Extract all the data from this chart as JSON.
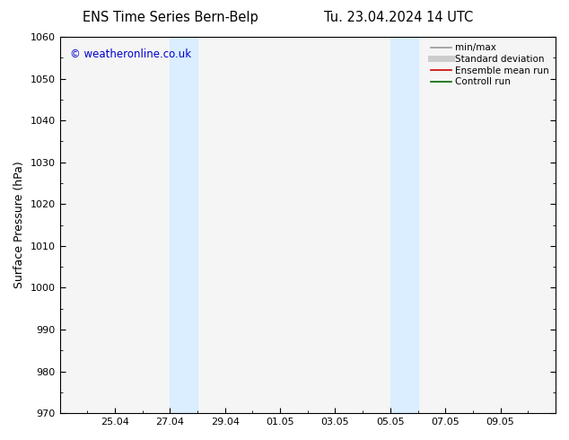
{
  "title_left": "ENS Time Series Bern-Belp",
  "title_right": "Tu. 23.04.2024 14 UTC",
  "ylabel": "Surface Pressure (hPa)",
  "ylim": [
    970,
    1060
  ],
  "yticks": [
    970,
    980,
    990,
    1000,
    1010,
    1020,
    1030,
    1040,
    1050,
    1060
  ],
  "xlabel_ticks": [
    "25.04",
    "27.04",
    "29.04",
    "01.05",
    "03.05",
    "05.05",
    "07.05",
    "09.05"
  ],
  "x_tick_positions": [
    2,
    4,
    6,
    8,
    10,
    12,
    14,
    16
  ],
  "shade_bands": [
    {
      "x_start": 4.0,
      "x_end": 5.0
    },
    {
      "x_start": 12.0,
      "x_end": 13.0
    }
  ],
  "shade_color": "#daeeff",
  "watermark_text": "© weatheronline.co.uk",
  "watermark_color": "#0000cc",
  "background_color": "#ffffff",
  "plot_bg_color": "#f5f5f5",
  "legend_items": [
    {
      "label": "min/max",
      "color": "#999999",
      "lw": 1.2
    },
    {
      "label": "Standard deviation",
      "color": "#cccccc",
      "lw": 5
    },
    {
      "label": "Ensemble mean run",
      "color": "#cc0000",
      "lw": 1.2
    },
    {
      "label": "Controll run",
      "color": "#006600",
      "lw": 1.2
    }
  ],
  "figsize": [
    6.34,
    4.9
  ],
  "dpi": 100,
  "x_min": 0,
  "x_max": 18
}
